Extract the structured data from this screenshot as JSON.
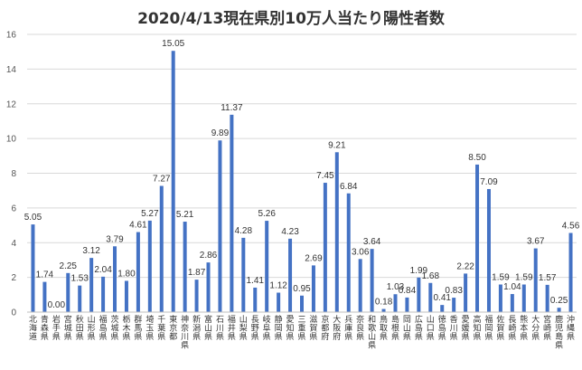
{
  "chart_data": {
    "type": "bar",
    "title": "2020/4/13現在県別10万人当たり陽性者数",
    "xlabel": "",
    "ylabel": "",
    "ylim": [
      0,
      16
    ],
    "yticks": [
      0,
      2,
      4,
      6,
      8,
      10,
      12,
      14,
      16
    ],
    "grid": true,
    "bar_color": "#4472C4",
    "categories": [
      "北海道",
      "青森県",
      "岩手県",
      "宮城県",
      "秋田県",
      "山形県",
      "福島県",
      "茨城県",
      "栃木県",
      "群馬県",
      "埼玉県",
      "千葉県",
      "東京都",
      "神奈川県",
      "新潟県",
      "富山県",
      "石川県",
      "福井県",
      "山梨県",
      "長野県",
      "岐阜県",
      "静岡県",
      "愛知県",
      "三重県",
      "滋賀県",
      "京都府",
      "大阪府",
      "兵庫県",
      "奈良県",
      "和歌山県",
      "鳥取県",
      "島根県",
      "岡山県",
      "広島県",
      "山口県",
      "徳島県",
      "香川県",
      "愛媛県",
      "高知県",
      "福岡県",
      "佐賀県",
      "長崎県",
      "熊本県",
      "大分県",
      "宮崎県",
      "鹿児島県",
      "沖縄県"
    ],
    "values": [
      5.05,
      1.74,
      0.0,
      2.25,
      1.53,
      3.12,
      2.04,
      3.79,
      1.8,
      4.61,
      5.27,
      7.27,
      15.05,
      5.21,
      1.87,
      2.86,
      9.89,
      11.37,
      4.28,
      1.41,
      5.26,
      1.12,
      4.23,
      0.95,
      2.69,
      7.45,
      9.21,
      6.84,
      3.06,
      3.64,
      0.18,
      1.03,
      0.84,
      1.99,
      1.68,
      0.41,
      0.83,
      2.22,
      8.5,
      7.09,
      1.59,
      1.04,
      1.59,
      3.67,
      1.57,
      0.25,
      4.56
    ],
    "value_labels": [
      "5.05",
      "1.74",
      "0.00",
      "2.25",
      "1.53",
      "3.12",
      "2.04",
      "3.79",
      "1.80",
      "4.61",
      "5.27",
      "7.27",
      "15.05",
      "5.21",
      "1.87",
      "2.86",
      "9.89",
      "11.37",
      "4.28",
      "1.41",
      "5.26",
      "1.12",
      "4.23",
      "0.95",
      "2.69",
      "7.45",
      "9.21",
      "6.84",
      "3.06",
      "3.64",
      "0.18",
      "1.03",
      "0.84",
      "1.99",
      "1.68",
      "0.41",
      "0.83",
      "2.22",
      "8.50",
      "7.09",
      "1.59",
      "1.04",
      "1.59",
      "3.67",
      "1.57",
      "0.25",
      "4.56"
    ]
  }
}
